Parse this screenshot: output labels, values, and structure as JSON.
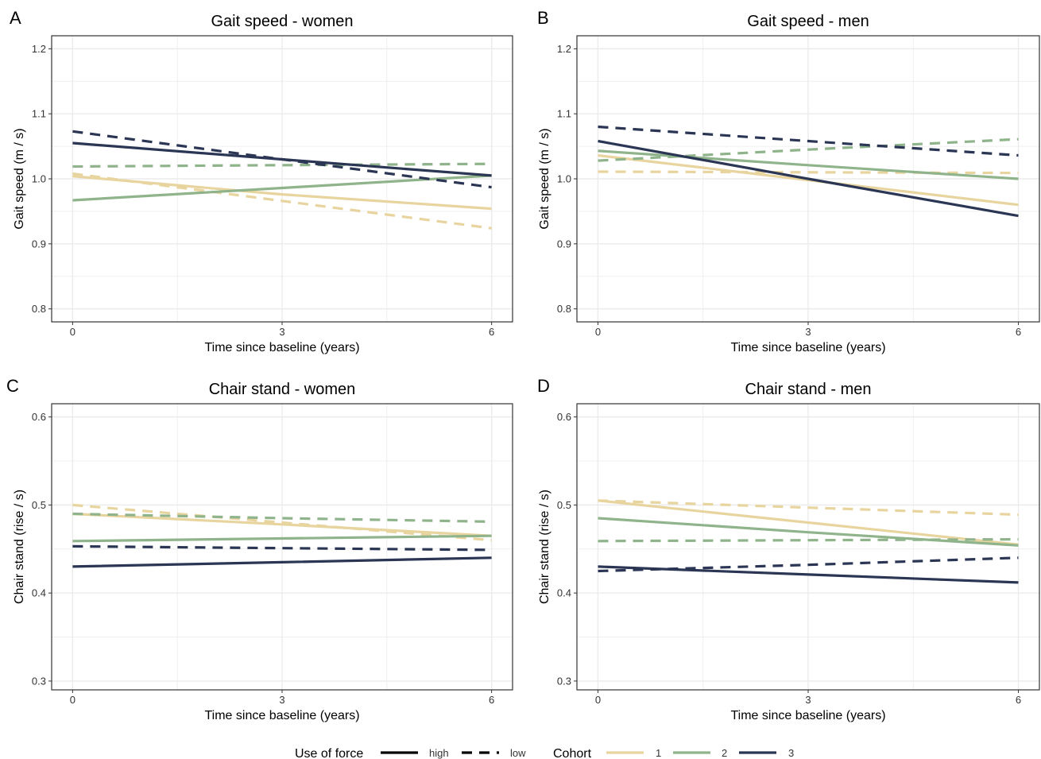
{
  "colors": {
    "cohort_1": "#e8d49e",
    "cohort_2": "#8fb38a",
    "cohort_3": "#2b3654",
    "grid": "#ebebeb",
    "panel_border": "#333333",
    "text": "#000000",
    "tick_text": "#333333"
  },
  "legend": {
    "force_title": "Use of force",
    "force_items": [
      {
        "label": "high",
        "linetype": "solid"
      },
      {
        "label": "low",
        "linetype": "dashed"
      }
    ],
    "cohort_title": "Cohort",
    "cohort_items": [
      {
        "label": "1",
        "color_key": "cohort_1"
      },
      {
        "label": "2",
        "color_key": "cohort_2"
      },
      {
        "label": "3",
        "color_key": "cohort_3"
      }
    ],
    "placement": "bottom"
  },
  "chart_data": [
    {
      "panel_letter": "A",
      "type": "line",
      "title": "Gait speed - women",
      "xlabel": "Time since baseline (years)",
      "ylabel": "Gait speed (m / s)",
      "xlim": [
        -0.3,
        6.3
      ],
      "ylim": [
        0.78,
        1.22
      ],
      "xticks": [
        "0",
        "3",
        "6"
      ],
      "xtick_values": [
        0,
        3,
        6
      ],
      "yticks": [
        "0.8",
        "0.9",
        "1.0",
        "1.1",
        "1.2"
      ],
      "ytick_values": [
        0.8,
        0.9,
        1.0,
        1.1,
        1.2
      ],
      "grid": true,
      "series": [
        {
          "cohort": "1",
          "force": "high",
          "x": [
            0,
            3,
            6
          ],
          "y": [
            1.004,
            0.976,
            0.954
          ]
        },
        {
          "cohort": "1",
          "force": "low",
          "x": [
            0,
            3,
            6
          ],
          "y": [
            1.008,
            0.966,
            0.924
          ]
        },
        {
          "cohort": "2",
          "force": "high",
          "x": [
            0,
            3,
            6
          ],
          "y": [
            0.967,
            0.986,
            1.005
          ]
        },
        {
          "cohort": "2",
          "force": "low",
          "x": [
            0,
            3,
            6
          ],
          "y": [
            1.019,
            1.021,
            1.023
          ]
        },
        {
          "cohort": "3",
          "force": "high",
          "x": [
            0,
            3,
            6
          ],
          "y": [
            1.055,
            1.03,
            1.005
          ]
        },
        {
          "cohort": "3",
          "force": "low",
          "x": [
            0,
            3,
            6
          ],
          "y": [
            1.073,
            1.03,
            0.987
          ]
        }
      ]
    },
    {
      "panel_letter": "B",
      "type": "line",
      "title": "Gait speed - men",
      "xlabel": "Time since baseline (years)",
      "ylabel": "Gait speed (m / s)",
      "xlim": [
        -0.3,
        6.3
      ],
      "ylim": [
        0.78,
        1.22
      ],
      "xticks": [
        "0",
        "3",
        "6"
      ],
      "xtick_values": [
        0,
        3,
        6
      ],
      "yticks": [
        "0.8",
        "0.9",
        "1.0",
        "1.1",
        "1.2"
      ],
      "ytick_values": [
        0.8,
        0.9,
        1.0,
        1.1,
        1.2
      ],
      "grid": true,
      "series": [
        {
          "cohort": "1",
          "force": "high",
          "x": [
            0,
            3,
            6
          ],
          "y": [
            1.036,
            0.998,
            0.96
          ]
        },
        {
          "cohort": "1",
          "force": "low",
          "x": [
            0,
            3,
            6
          ],
          "y": [
            1.011,
            1.01,
            1.009
          ]
        },
        {
          "cohort": "2",
          "force": "high",
          "x": [
            0,
            3,
            6
          ],
          "y": [
            1.043,
            1.021,
            1.0
          ]
        },
        {
          "cohort": "2",
          "force": "low",
          "x": [
            0,
            3,
            6
          ],
          "y": [
            1.028,
            1.045,
            1.061
          ]
        },
        {
          "cohort": "3",
          "force": "high",
          "x": [
            0,
            3,
            6
          ],
          "y": [
            1.058,
            1.0,
            0.943
          ]
        },
        {
          "cohort": "3",
          "force": "low",
          "x": [
            0,
            3,
            6
          ],
          "y": [
            1.08,
            1.058,
            1.036
          ]
        }
      ]
    },
    {
      "panel_letter": "C",
      "type": "line",
      "title": "Chair stand - women",
      "xlabel": "Time since baseline (years)",
      "ylabel": "Chair stand (rise / s)",
      "xlim": [
        -0.3,
        6.3
      ],
      "ylim": [
        0.29,
        0.615
      ],
      "xticks": [
        "0",
        "3",
        "6"
      ],
      "xtick_values": [
        0,
        3,
        6
      ],
      "yticks": [
        "0.3",
        "0.4",
        "0.5",
        "0.6"
      ],
      "ytick_values": [
        0.3,
        0.4,
        0.5,
        0.6
      ],
      "grid": true,
      "series": [
        {
          "cohort": "1",
          "force": "high",
          "x": [
            0,
            3,
            6
          ],
          "y": [
            0.49,
            0.478,
            0.465
          ]
        },
        {
          "cohort": "1",
          "force": "low",
          "x": [
            0,
            3,
            6
          ],
          "y": [
            0.5,
            0.48,
            0.46
          ]
        },
        {
          "cohort": "2",
          "force": "high",
          "x": [
            0,
            3,
            6
          ],
          "y": [
            0.459,
            0.462,
            0.465
          ]
        },
        {
          "cohort": "2",
          "force": "low",
          "x": [
            0,
            3,
            6
          ],
          "y": [
            0.49,
            0.485,
            0.481
          ]
        },
        {
          "cohort": "3",
          "force": "high",
          "x": [
            0,
            3,
            6
          ],
          "y": [
            0.43,
            0.435,
            0.44
          ]
        },
        {
          "cohort": "3",
          "force": "low",
          "x": [
            0,
            3,
            6
          ],
          "y": [
            0.453,
            0.451,
            0.449
          ]
        }
      ]
    },
    {
      "panel_letter": "D",
      "type": "line",
      "title": "Chair stand - men",
      "xlabel": "Time since baseline (years)",
      "ylabel": "Chair stand (rise / s)",
      "xlim": [
        -0.3,
        6.3
      ],
      "ylim": [
        0.29,
        0.615
      ],
      "xticks": [
        "0",
        "3",
        "6"
      ],
      "xtick_values": [
        0,
        3,
        6
      ],
      "yticks": [
        "0.3",
        "0.4",
        "0.5",
        "0.6"
      ],
      "ytick_values": [
        0.3,
        0.4,
        0.5,
        0.6
      ],
      "grid": true,
      "series": [
        {
          "cohort": "1",
          "force": "high",
          "x": [
            0,
            3,
            6
          ],
          "y": [
            0.505,
            0.48,
            0.455
          ]
        },
        {
          "cohort": "1",
          "force": "low",
          "x": [
            0,
            3,
            6
          ],
          "y": [
            0.505,
            0.497,
            0.489
          ]
        },
        {
          "cohort": "2",
          "force": "high",
          "x": [
            0,
            3,
            6
          ],
          "y": [
            0.485,
            0.469,
            0.454
          ]
        },
        {
          "cohort": "2",
          "force": "low",
          "x": [
            0,
            3,
            6
          ],
          "y": [
            0.459,
            0.46,
            0.461
          ]
        },
        {
          "cohort": "3",
          "force": "high",
          "x": [
            0,
            3,
            6
          ],
          "y": [
            0.43,
            0.421,
            0.412
          ]
        },
        {
          "cohort": "3",
          "force": "low",
          "x": [
            0,
            3,
            6
          ],
          "y": [
            0.425,
            0.432,
            0.44
          ]
        }
      ]
    }
  ]
}
